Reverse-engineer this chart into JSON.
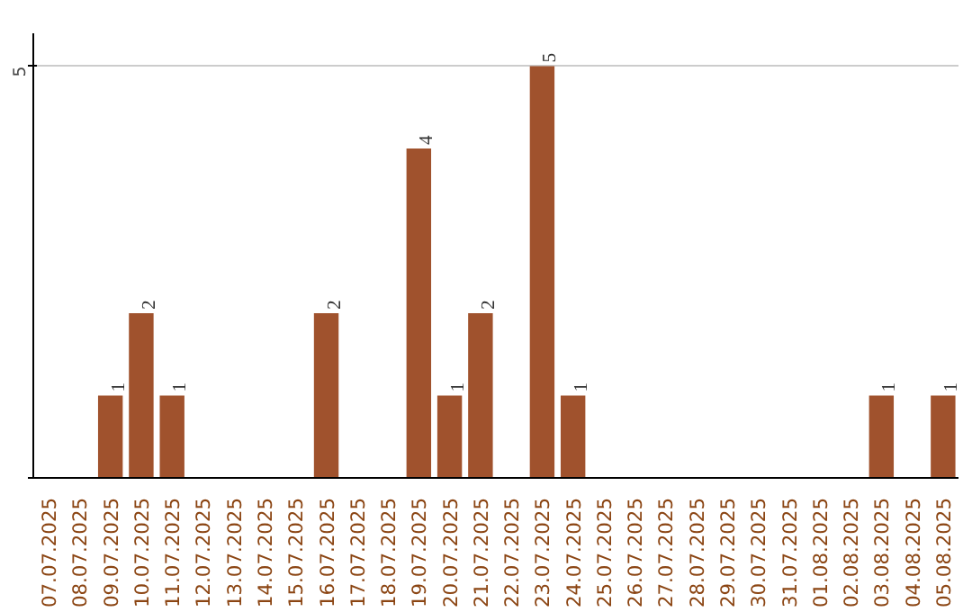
{
  "chart_data": {
    "type": "bar",
    "categories": [
      "07.07.2025",
      "08.07.2025",
      "09.07.2025",
      "10.07.2025",
      "11.07.2025",
      "12.07.2025",
      "13.07.2025",
      "14.07.2025",
      "15.07.2025",
      "16.07.2025",
      "17.07.2025",
      "18.07.2025",
      "19.07.2025",
      "20.07.2025",
      "21.07.2025",
      "22.07.2025",
      "23.07.2025",
      "24.07.2025",
      "25.07.2025",
      "26.07.2025",
      "27.07.2025",
      "28.07.2025",
      "29.07.2025",
      "30.07.2025",
      "31.07.2025",
      "01.08.2025",
      "02.08.2025",
      "03.08.2025",
      "04.08.2025",
      "05.08.2025"
    ],
    "values": [
      0,
      0,
      1,
      2,
      1,
      0,
      0,
      0,
      0,
      2,
      0,
      0,
      4,
      1,
      2,
      0,
      5,
      1,
      0,
      0,
      0,
      0,
      0,
      0,
      0,
      0,
      0,
      1,
      0,
      1
    ],
    "value_labels": [
      null,
      null,
      "1",
      "2",
      "1",
      null,
      null,
      null,
      null,
      "2",
      null,
      null,
      "4",
      "1",
      "2",
      null,
      "5",
      "1",
      null,
      null,
      null,
      null,
      null,
      null,
      null,
      null,
      null,
      "1",
      null,
      "1"
    ],
    "color": "#a0522d",
    "ylim": [
      0,
      5.4
    ],
    "yticks": [
      {
        "value": 0,
        "label": null
      },
      5
    ],
    "grid": "y"
  }
}
